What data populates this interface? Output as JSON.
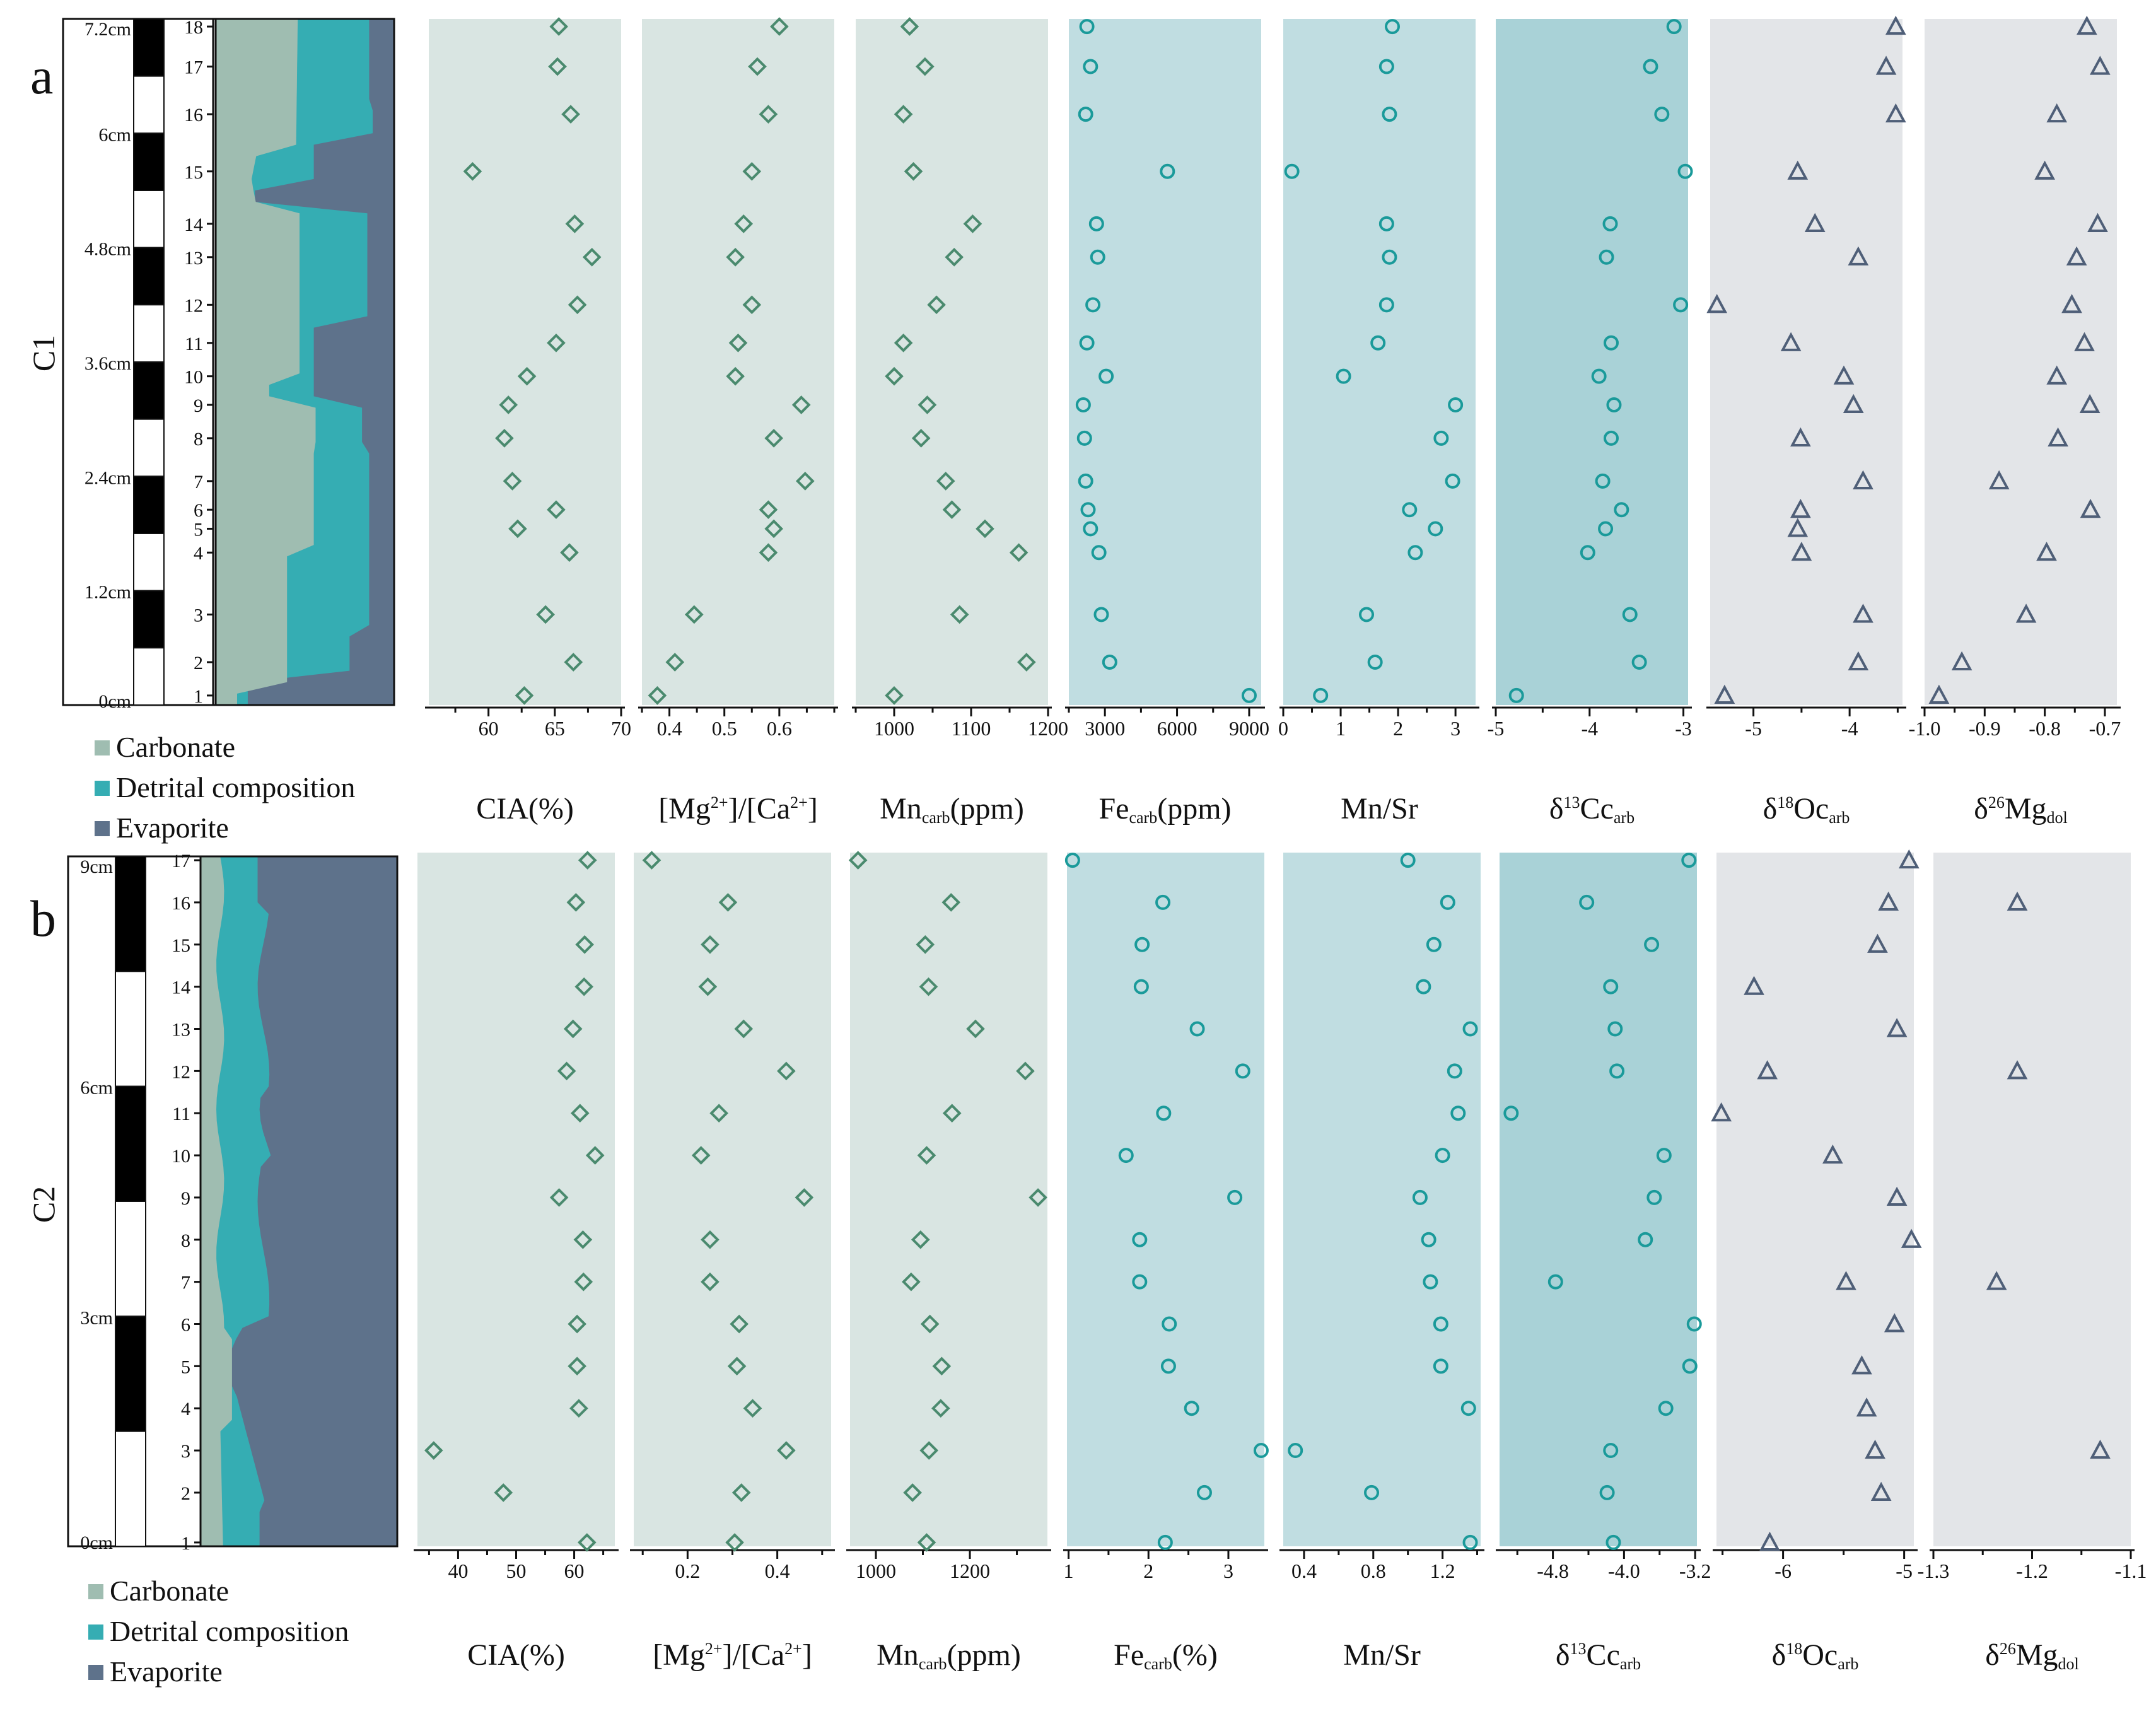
{
  "chart_data": [
    {
      "type": "scatter",
      "panel_label": "a",
      "core": "C1",
      "depth_labels": [
        "7.2cm",
        "6cm",
        "4.8cm",
        "3.6cm",
        "2.4cm",
        "1.2cm",
        "0cm"
      ],
      "depth_cm": [
        7.2,
        6.0,
        4.8,
        3.6,
        2.4,
        1.2,
        0.0
      ],
      "samples": [
        18,
        17,
        16,
        15,
        14,
        13,
        12,
        11,
        10,
        9,
        8,
        7,
        6,
        5,
        4,
        3,
        2,
        1
      ],
      "sample_depth_cm": [
        7.12,
        6.7,
        6.2,
        5.6,
        5.05,
        4.7,
        4.2,
        3.8,
        3.45,
        3.15,
        2.8,
        2.35,
        2.05,
        1.85,
        1.6,
        0.95,
        0.45,
        0.1
      ],
      "legend": [
        "Carbonate",
        "Detrital composition",
        "Evaporite"
      ],
      "columns": [
        {
          "label": "CIA(%)",
          "ticks": [
            "60",
            "65",
            "70"
          ],
          "range": [
            55.5,
            70
          ],
          "marker": "diamond",
          "values": [
            65.3,
            65.2,
            66.2,
            58.8,
            66.5,
            67.8,
            66.7,
            65.1,
            62.9,
            61.5,
            61.2,
            61.8,
            65.1,
            62.2,
            66.1,
            64.3,
            66.4,
            62.7
          ]
        },
        {
          "label": "[Mg2+]/[Ca2+]",
          "ticks": [
            "0.4",
            "0.5",
            "0.6"
          ],
          "range": [
            0.35,
            0.7
          ],
          "marker": "diamond",
          "values": [
            0.6,
            0.56,
            0.58,
            0.55,
            0.535,
            0.52,
            0.55,
            0.525,
            0.52,
            0.64,
            0.59,
            0.647,
            0.58,
            0.59,
            0.58,
            0.445,
            0.41,
            0.378
          ]
        },
        {
          "label": "Mncarb(ppm)",
          "ticks": [
            "1000",
            "1100",
            "1200"
          ],
          "range": [
            950,
            1200
          ],
          "marker": "diamond",
          "values": [
            1020,
            1040,
            1012,
            1025,
            1102,
            1078,
            1055,
            1012,
            1000,
            1043,
            1035,
            1067,
            1075,
            1118,
            1162,
            1085,
            1172,
            1000
          ]
        },
        {
          "label": "Fecarb(ppm)",
          "ticks": [
            "3000",
            "6000",
            "9000"
          ],
          "range": [
            1500,
            9500
          ],
          "marker": "circle",
          "values": [
            2250,
            2400,
            2200,
            5600,
            2650,
            2700,
            2500,
            2250,
            3050,
            2100,
            2150,
            2200,
            2300,
            2400,
            2750,
            2850,
            3200,
            9000
          ]
        },
        {
          "label": "Mn/Sr",
          "ticks": [
            "0",
            "1",
            "2",
            "3"
          ],
          "range": [
            0,
            3.35
          ],
          "marker": "circle",
          "values": [
            1.9,
            1.8,
            1.85,
            0.15,
            1.8,
            1.85,
            1.8,
            1.65,
            1.05,
            3.0,
            2.75,
            2.95,
            2.2,
            2.65,
            2.3,
            1.45,
            1.6,
            0.65
          ]
        },
        {
          "label": "δ13Ccarb",
          "ticks": [
            "-5",
            "-4",
            "-3"
          ],
          "range": [
            -5,
            -2.95
          ],
          "marker": "circle",
          "values": [
            -3.1,
            -3.35,
            -3.23,
            -2.98,
            -3.78,
            -3.82,
            -3.03,
            -3.77,
            -3.9,
            -3.74,
            -3.77,
            -3.86,
            -3.66,
            -3.83,
            -4.02,
            -3.57,
            -3.47,
            -4.78
          ]
        },
        {
          "label": "δ18Ocarb",
          "ticks": [
            "-5",
            "-4"
          ],
          "range": [
            -5.45,
            -3.45
          ],
          "marker": "triangle",
          "values": [
            -3.52,
            -3.62,
            -3.52,
            -4.54,
            -4.36,
            -3.91,
            -5.38,
            -4.61,
            -4.06,
            -3.96,
            -4.51,
            -3.86,
            -4.51,
            -4.54,
            -4.5,
            -3.86,
            -3.91,
            -5.3
          ]
        },
        {
          "label": "δ26Mgdol",
          "ticks": [
            "-1.0",
            "-0.9",
            "-0.8",
            "-0.7"
          ],
          "range": [
            -1.0,
            -0.68
          ],
          "marker": "triangle",
          "values": [
            -0.73,
            -0.708,
            -0.78,
            -0.8,
            -0.712,
            -0.747,
            -0.755,
            -0.734,
            -0.78,
            -0.725,
            -0.778,
            -0.876,
            -0.724,
            null,
            -0.797,
            -0.831,
            -0.938,
            -0.976
          ]
        }
      ]
    },
    {
      "type": "scatter",
      "panel_label": "b",
      "core": "C2",
      "depth_labels": [
        "9cm",
        "6cm",
        "3cm",
        "0cm"
      ],
      "depth_cm": [
        9.0,
        6.0,
        3.0,
        0.0
      ],
      "samples": [
        17,
        16,
        15,
        14,
        13,
        12,
        11,
        10,
        9,
        8,
        7,
        6,
        5,
        4,
        3,
        2,
        1
      ],
      "sample_depth_cm": [
        8.95,
        8.4,
        7.85,
        7.3,
        6.75,
        6.2,
        5.65,
        5.1,
        4.55,
        4.0,
        3.45,
        2.9,
        2.35,
        1.8,
        1.25,
        0.7,
        0.05
      ],
      "legend": [
        "Carbonate",
        "Detrital composition",
        "Evaporite"
      ],
      "columns": [
        {
          "label": "CIA(%)",
          "ticks": [
            "40",
            "50",
            "60"
          ],
          "range": [
            33,
            67
          ],
          "marker": "diamond",
          "values": [
            62.3,
            60.3,
            61.8,
            61.7,
            59.8,
            58.7,
            61.0,
            63.6,
            57.4,
            61.5,
            61.6,
            60.5,
            60.5,
            60.8,
            35.8,
            47.8,
            62.2
          ]
        },
        {
          "label": "[Mg2+]/[Ca2+]",
          "ticks": [
            "0.2",
            "0.4"
          ],
          "range": [
            0.08,
            0.52
          ],
          "marker": "diamond",
          "values": [
            0.12,
            0.29,
            0.25,
            0.245,
            0.325,
            0.42,
            0.27,
            0.23,
            0.46,
            0.25,
            0.25,
            0.315,
            0.31,
            0.345,
            0.42,
            0.32,
            0.305
          ]
        },
        {
          "label": "Mncarb(ppm)",
          "ticks": [
            "1000",
            "1200"
          ],
          "range": [
            945,
            1365
          ],
          "marker": "diamond",
          "values": [
            962,
            1160,
            1105,
            1112,
            1212,
            1318,
            1162,
            1108,
            1345,
            1095,
            1075,
            1115,
            1140,
            1138,
            1113,
            1078,
            1108
          ]
        },
        {
          "label": "Fecarb(%)",
          "ticks": [
            "1",
            "2",
            "3"
          ],
          "range": [
            0.98,
            3.45
          ],
          "marker": "circle",
          "values": [
            1.05,
            2.18,
            1.92,
            1.91,
            2.61,
            3.18,
            2.19,
            1.72,
            3.08,
            1.89,
            1.89,
            2.26,
            2.25,
            2.54,
            3.41,
            2.7,
            2.21
          ]
        },
        {
          "label": "Mn/Sr",
          "ticks": [
            "0.4",
            "0.8",
            "1.2"
          ],
          "range": [
            0.28,
            1.42
          ],
          "marker": "circle",
          "values": [
            1.0,
            1.23,
            1.15,
            1.09,
            1.36,
            1.27,
            1.29,
            1.2,
            1.07,
            1.12,
            1.13,
            1.19,
            1.19,
            1.35,
            0.35,
            0.79,
            1.36
          ]
        },
        {
          "label": "δ13Ccarb",
          "ticks": [
            "-4.8",
            "-4.0",
            "-3.2"
          ],
          "range": [
            -5.4,
            -3.18
          ],
          "marker": "circle",
          "values": [
            -3.27,
            -4.42,
            -3.69,
            -4.15,
            -4.1,
            -4.08,
            -5.27,
            -3.55,
            -3.66,
            -3.76,
            -4.77,
            -3.21,
            -3.26,
            -3.53,
            -4.15,
            -4.19,
            -4.12
          ]
        },
        {
          "label": "δ18Ocarb",
          "ticks": [
            "-6",
            "-5"
          ],
          "range": [
            -6.55,
            -4.92
          ],
          "marker": "triangle",
          "values": [
            -4.96,
            -5.13,
            -5.22,
            -6.24,
            -5.06,
            -6.13,
            -6.51,
            -5.59,
            -5.06,
            -4.94,
            -5.48,
            -5.08,
            -5.35,
            -5.31,
            -5.24,
            -5.19,
            -6.11
          ]
        },
        {
          "label": "δ26Mgdol",
          "ticks": [
            "-1.3",
            "-1.2",
            "-1.1"
          ],
          "range": [
            -1.3,
            -1.1
          ],
          "marker": "triangle",
          "values": [
            null,
            -1.215,
            null,
            null,
            null,
            -1.215,
            null,
            null,
            null,
            null,
            -1.236,
            null,
            null,
            null,
            -1.131,
            null,
            null
          ]
        }
      ]
    }
  ],
  "colors": {
    "col_green": "#d9e5e2",
    "col_teal": "#c0dde1",
    "col_teal_dark": "#a9d2d7",
    "col_grey": "#e3e5e8",
    "carbonate": "#9fbdb1",
    "detrital": "#35adb3",
    "evaporite": "#5e728b",
    "marker_green": "#4a8a6e",
    "marker_teal": "#1a9a9a",
    "marker_slate": "#4f5f78"
  }
}
